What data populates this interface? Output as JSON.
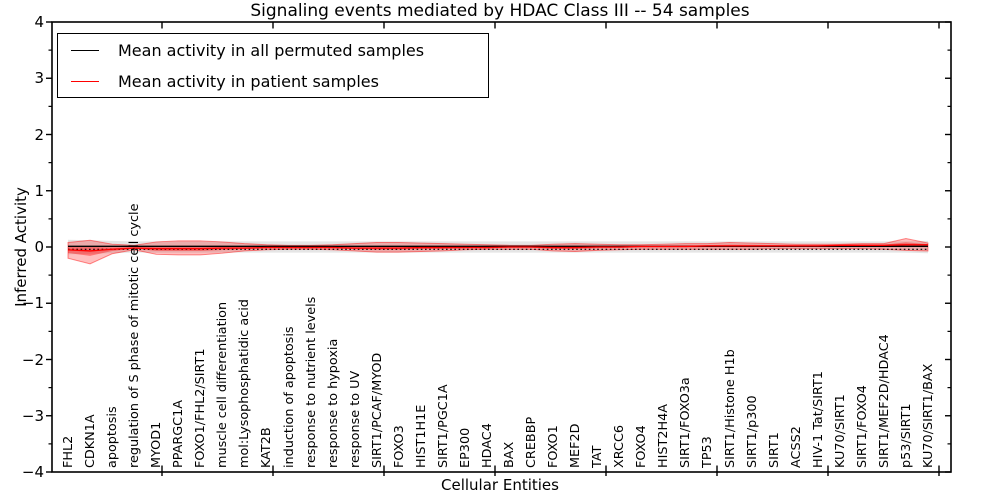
{
  "chart_data": {
    "type": "line",
    "title": "Signaling events mediated by HDAC Class III -- 54 samples",
    "xlabel": "Cellular Entities",
    "ylabel": "Inferred Activity",
    "ylim": [
      -4,
      4
    ],
    "ytick_values": [
      4,
      3,
      2,
      1,
      0,
      -1,
      -2,
      -3,
      -4
    ],
    "ytick_labels": [
      "4",
      "3",
      "2",
      "1",
      "0",
      "−1",
      "−2",
      "−3",
      "−4"
    ],
    "grid": false,
    "legend_position": "upper left",
    "legend": [
      {
        "label": "Mean activity in all permuted samples",
        "color": "#000000"
      },
      {
        "label": "Mean activity in patient samples",
        "color": "#ff0000"
      }
    ],
    "categories": [
      "FHL2",
      "CDKN1A",
      "apoptosis",
      "regulation of S phase of mitotic cell cycle",
      "MYOD1",
      "PPARGC1A",
      "FOXO1/FHL2/SIRT1",
      "muscle cell differentiation",
      "mol:Lysophosphatidic acid",
      "KAT2B",
      "induction of apoptosis",
      "response to nutrient levels",
      "response to hypoxia",
      "response to UV",
      "SIRT1/PCAF/MYOD",
      "FOXO3",
      "HIST1H1E",
      "SIRT1/PGC1A",
      "EP300",
      "HDAC4",
      "BAX",
      "CREBBP",
      "FOXO1",
      "MEF2D",
      "TAT",
      "XRCC6",
      "FOXO4",
      "HIST2H4A",
      "SIRT1/FOXO3a",
      "TP53",
      "SIRT1/Histone H1b",
      "SIRT1/p300",
      "SIRT1",
      "ACSS2",
      "HIV-1 Tat/SIRT1",
      "KU70/SIRT1",
      "SIRT1/FOXO4",
      "SIRT1/MEF2D/HDAC4",
      "p53/SIRT1",
      "KU70/SIRT1/BAX"
    ],
    "series": [
      {
        "name": "Mean activity in all permuted samples",
        "color": "#000000",
        "values": [
          0,
          0,
          0,
          0,
          0,
          0,
          0,
          0,
          0,
          0,
          0,
          0,
          0,
          0,
          0,
          0,
          0,
          0,
          0,
          0,
          0,
          0,
          0,
          0,
          0,
          0,
          0,
          0,
          0,
          0,
          0,
          0,
          0,
          0,
          0,
          0,
          0,
          0,
          0,
          0
        ]
      },
      {
        "name": "Mean activity in patient samples",
        "color": "#ff0000",
        "values": [
          -0.05,
          -0.07,
          -0.04,
          -0.02,
          -0.03,
          -0.03,
          -0.03,
          -0.02,
          -0.02,
          -0.01,
          -0.01,
          -0.01,
          -0.01,
          -0.02,
          -0.02,
          -0.02,
          -0.01,
          -0.01,
          -0.01,
          -0.01,
          0,
          0,
          -0.01,
          -0.01,
          0,
          0,
          0.01,
          0.01,
          0.01,
          0.02,
          0.02,
          0.02,
          0.02,
          0.02,
          0.02,
          0.03,
          0.03,
          0.03,
          0.04,
          0.04
        ]
      }
    ],
    "bands": {
      "permuted_halfwidth": [
        0.13,
        0.12,
        0.11,
        0.1,
        0.1,
        0.1,
        0.1,
        0.1,
        0.1,
        0.1,
        0.1,
        0.1,
        0.1,
        0.1,
        0.1,
        0.1,
        0.1,
        0.1,
        0.1,
        0.1,
        0.1,
        0.1,
        0.1,
        0.1,
        0.1,
        0.1,
        0.1,
        0.1,
        0.1,
        0.1,
        0.1,
        0.1,
        0.1,
        0.1,
        0.1,
        0.1,
        0.1,
        0.1,
        0.1,
        0.11
      ],
      "patient_upper": [
        0.08,
        0.12,
        0.05,
        0.03,
        0.09,
        0.11,
        0.11,
        0.09,
        0.06,
        0.04,
        0.03,
        0.03,
        0.04,
        0.06,
        0.08,
        0.08,
        0.07,
        0.06,
        0.05,
        0.04,
        0.03,
        0.03,
        0.05,
        0.06,
        0.05,
        0.04,
        0.04,
        0.05,
        0.06,
        0.06,
        0.08,
        0.07,
        0.06,
        0.05,
        0.05,
        0.05,
        0.06,
        0.06,
        0.15,
        0.07
      ],
      "patient_lower": [
        -0.2,
        -0.3,
        -0.12,
        -0.05,
        -0.13,
        -0.14,
        -0.14,
        -0.11,
        -0.07,
        -0.05,
        -0.04,
        -0.04,
        -0.05,
        -0.07,
        -0.09,
        -0.09,
        -0.08,
        -0.07,
        -0.05,
        -0.04,
        -0.04,
        -0.04,
        -0.07,
        -0.08,
        -0.06,
        -0.05,
        -0.04,
        -0.04,
        -0.04,
        -0.04,
        -0.04,
        -0.04,
        -0.03,
        -0.03,
        -0.03,
        -0.03,
        -0.03,
        -0.04,
        -0.06,
        -0.07
      ]
    },
    "colors": {
      "patient_band": "rgba(255,0,0,0.25)",
      "patient_band_inner": "rgba(255,0,0,0.38)",
      "patient_band_edge": "rgba(255,0,0,0.45)",
      "permuted_band": "rgba(0,0,0,0.10)",
      "frame": "#000000"
    }
  }
}
